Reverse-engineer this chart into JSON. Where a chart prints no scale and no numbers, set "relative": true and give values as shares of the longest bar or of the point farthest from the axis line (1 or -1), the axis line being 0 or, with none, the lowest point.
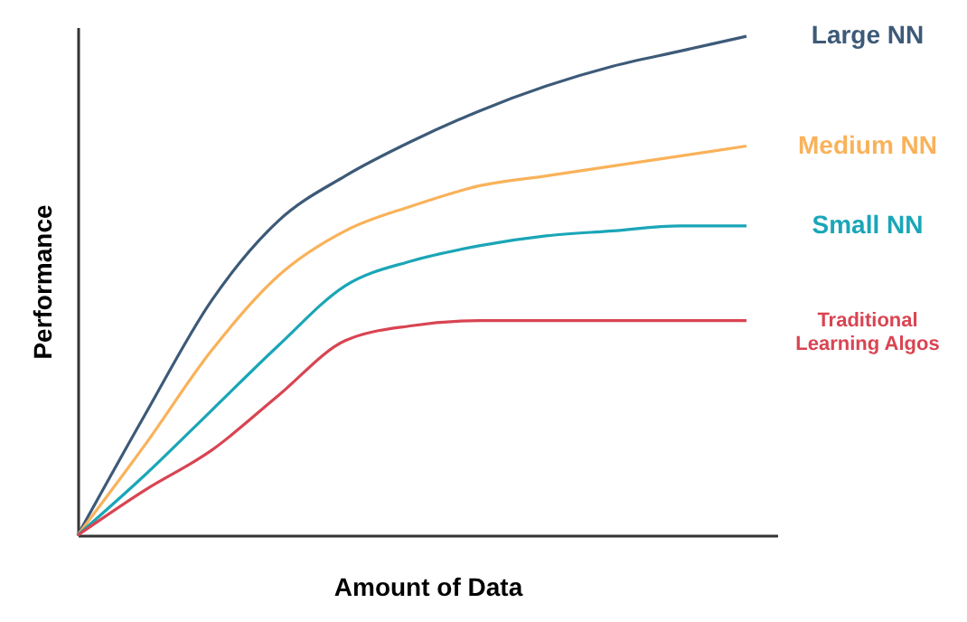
{
  "chart_data": {
    "type": "line",
    "relative": true,
    "xlabel": "Amount of Data",
    "ylabel": "Performance",
    "categories": [
      null,
      null,
      null,
      null,
      null,
      null,
      null,
      null,
      null,
      null,
      null
    ],
    "grid": false,
    "legend": false,
    "marker": "none",
    "line_style": "solid",
    "series": [
      {
        "name": "Large NN",
        "color": "#3d5a78",
        "values": [
          0,
          0.24,
          0.47,
          0.63,
          0.72,
          0.79,
          0.85,
          0.9,
          0.94,
          0.97,
          1.0
        ]
      },
      {
        "name": "Medium NN",
        "color": "#f9b25a",
        "values": [
          0,
          0.18,
          0.37,
          0.52,
          0.61,
          0.66,
          0.7,
          0.72,
          0.74,
          0.76,
          0.78
        ]
      },
      {
        "name": "Small NN",
        "color": "#1aa6b7",
        "values": [
          0,
          0.12,
          0.25,
          0.38,
          0.5,
          0.55,
          0.58,
          0.6,
          0.61,
          0.62,
          0.62
        ]
      },
      {
        "name": "Traditional\nLearning Algos",
        "color": "#d94452",
        "values": [
          0,
          0.09,
          0.17,
          0.28,
          0.39,
          0.42,
          0.43,
          0.43,
          0.43,
          0.43,
          0.43
        ]
      }
    ]
  }
}
